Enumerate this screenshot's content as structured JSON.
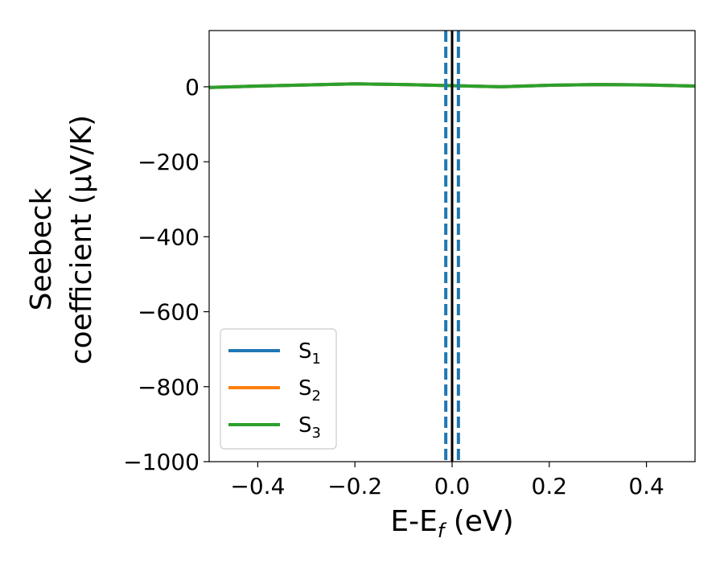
{
  "chart_data": {
    "type": "line",
    "xlabel": "E-E",
    "xlabel_sub": "f",
    "xlabel_unit": " (eV)",
    "ylabel_line1": "Seebeck",
    "ylabel_line2": "coefficient  (μV/K)",
    "xlim": [
      -0.5,
      0.5
    ],
    "ylim": [
      -1000,
      150
    ],
    "xticks": [
      -0.4,
      -0.2,
      0.0,
      0.2,
      0.4
    ],
    "xtick_labels": [
      "−0.4",
      "−0.2",
      "0.0",
      "0.2",
      "0.4"
    ],
    "yticks": [
      0,
      -200,
      -400,
      -600,
      -800,
      -1000
    ],
    "ytick_labels": [
      "0",
      "−200",
      "−400",
      "−600",
      "−800",
      "−1000"
    ],
    "grid": false,
    "legend_position": "lower-left",
    "series": [
      {
        "name": "S",
        "sub": "1",
        "color": "#1f77b4",
        "x": [
          -0.5,
          -0.4,
          -0.3,
          -0.2,
          -0.1,
          0.0,
          0.1,
          0.2,
          0.3,
          0.4,
          0.5
        ],
        "y": [
          -2,
          2,
          5,
          8,
          6,
          3,
          0,
          4,
          6,
          5,
          2
        ]
      },
      {
        "name": "S",
        "sub": "2",
        "color": "#ff7f0e",
        "x": [
          -0.5,
          -0.4,
          -0.3,
          -0.2,
          -0.1,
          0.0,
          0.1,
          0.2,
          0.3,
          0.4,
          0.5
        ],
        "y": [
          -2,
          2,
          5,
          8,
          6,
          3,
          0,
          4,
          6,
          5,
          2
        ]
      },
      {
        "name": "S",
        "sub": "3",
        "color": "#2ca02c",
        "x": [
          -0.5,
          -0.4,
          -0.3,
          -0.2,
          -0.1,
          0.0,
          0.1,
          0.2,
          0.3,
          0.4,
          0.5
        ],
        "y": [
          -2,
          2,
          5,
          8,
          6,
          3,
          0,
          4,
          6,
          5,
          2
        ]
      }
    ],
    "vlines": [
      {
        "x": 0.0,
        "color": "#000000",
        "style": "solid"
      },
      {
        "x": -0.013,
        "color": "#1f77b4",
        "style": "dashed"
      },
      {
        "x": 0.013,
        "color": "#1f77b4",
        "style": "dashed"
      }
    ]
  }
}
